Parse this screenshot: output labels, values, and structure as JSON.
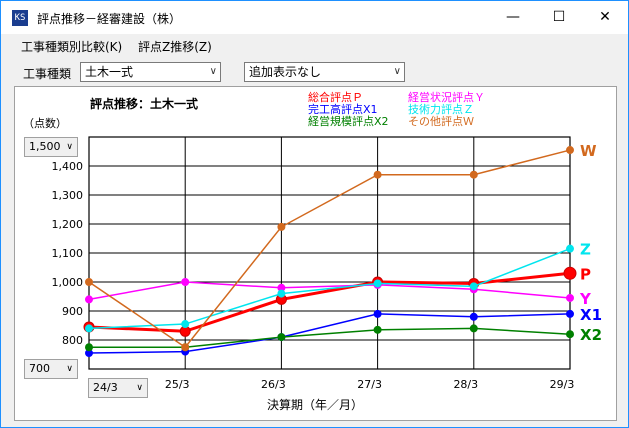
{
  "window": {
    "icon_label": "KS",
    "title": "評点推移－経審建設（株）",
    "minimize_icon": "minimize-icon",
    "maximize_icon": "maximize-icon",
    "close_icon": "close-icon"
  },
  "menu": {
    "items": [
      {
        "label": "工事種類別比較(K)"
      },
      {
        "label": "評点Z推移(Z)"
      }
    ]
  },
  "toolbar": {
    "category_label": "工事種類",
    "category_value": "土木一式",
    "display_value": "追加表示なし"
  },
  "controls": {
    "ymax_value": "1,500",
    "ymin_value": "700",
    "xstart_value": "24/3"
  },
  "chart_data": {
    "type": "line",
    "title": "評点推移：土木一式",
    "ylabel": "（点数）",
    "xlabel": "決算期（年／月）",
    "categories": [
      "24/3",
      "25/3",
      "26/3",
      "27/3",
      "28/3",
      "29/3"
    ],
    "ylim": [
      700,
      1500
    ],
    "y_ticks": [
      700,
      800,
      900,
      1000,
      1100,
      1200,
      1300,
      1400,
      1500
    ],
    "y_tick_labels": [
      "700",
      "800",
      "900",
      "1,000",
      "1,100",
      "1,200",
      "1,300",
      "1,400",
      "1,500"
    ],
    "grid": true,
    "series": [
      {
        "name": "総合評点Ｐ",
        "tag": "P",
        "color": "#ff0000",
        "values": [
          845,
          830,
          940,
          1000,
          995,
          1030
        ]
      },
      {
        "name": "完工高評点X1",
        "tag": "X1",
        "color": "#0000ff",
        "values": [
          755,
          760,
          810,
          890,
          880,
          890
        ]
      },
      {
        "name": "経営規模評点X2",
        "tag": "X2",
        "color": "#008000",
        "values": [
          775,
          775,
          810,
          835,
          840,
          820
        ]
      },
      {
        "name": "経営状況評点Ｙ",
        "tag": "Y",
        "color": "#ff00ff",
        "values": [
          940,
          1000,
          980,
          990,
          975,
          945
        ]
      },
      {
        "name": "技術力評点Ｚ",
        "tag": "Z",
        "color": "#00e5ee",
        "values": [
          840,
          855,
          960,
          995,
          985,
          1115
        ]
      },
      {
        "name": "その他評点Ｗ",
        "tag": "W",
        "color": "#d2691e",
        "values": [
          1000,
          775,
          1190,
          1370,
          1370,
          1455
        ]
      }
    ]
  }
}
